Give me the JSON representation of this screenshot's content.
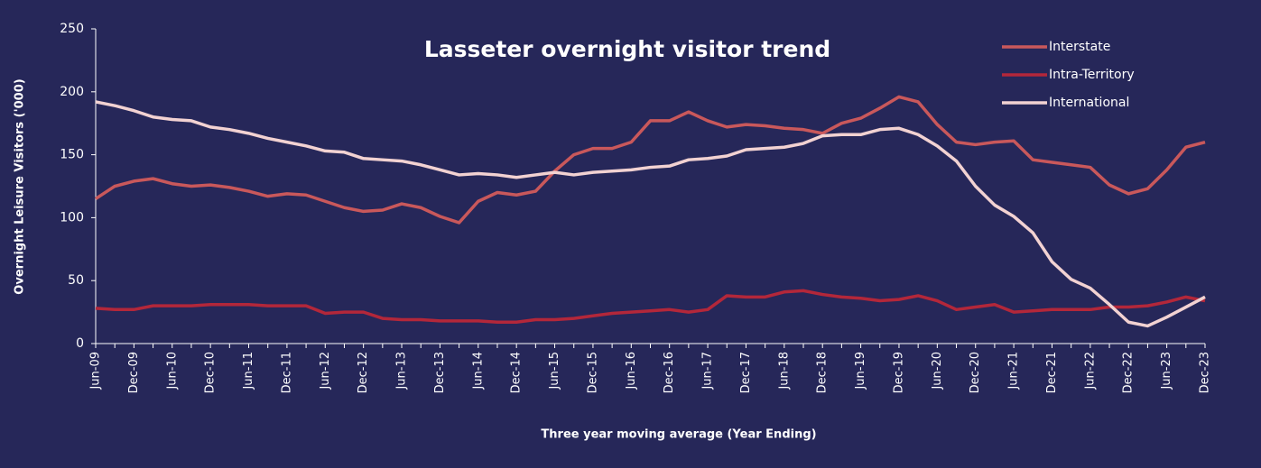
{
  "chart_data": {
    "type": "line",
    "title": "Lasseter overnight visitor trend",
    "y_label": "Overnight Leisure Visitors ('000)",
    "x_label": "Three year moving average (Year Ending)",
    "categories": [
      "Jun-09",
      null,
      "Dec-09",
      null,
      "Jun-10",
      null,
      "Dec-10",
      null,
      "Jun-11",
      null,
      "Dec-11",
      null,
      "Jun-12",
      null,
      "Dec-12",
      null,
      "Jun-13",
      null,
      "Dec-13",
      null,
      "Jun-14",
      null,
      "Dec-14",
      null,
      "Jun-15",
      null,
      "Dec-15",
      null,
      "Jun-16",
      null,
      "Dec-16",
      null,
      "Jun-17",
      null,
      "Dec-17",
      null,
      "Jun-18",
      null,
      "Dec-18",
      null,
      "Jun-19",
      null,
      "Dec-19",
      null,
      "Jun-20",
      null,
      "Dec-20",
      null,
      "Jun-21",
      null,
      "Dec-21",
      null,
      "Jun-22",
      null,
      "Dec-22",
      null,
      "Jun-23",
      null,
      "Dec-23"
    ],
    "series": [
      {
        "name": "Interstate",
        "color": "#c9585b",
        "values": [
          115,
          125,
          129,
          131,
          127,
          125,
          126,
          124,
          121,
          117,
          119,
          118,
          113,
          108,
          105,
          106,
          111,
          108,
          101,
          96,
          113,
          120,
          118,
          121,
          137,
          150,
          155,
          155,
          160,
          177,
          177,
          184,
          177,
          172,
          174,
          173,
          171,
          170,
          167,
          175,
          179,
          187,
          196,
          192,
          174,
          160,
          158,
          160,
          161,
          146,
          144,
          142,
          140,
          126,
          119,
          123,
          138,
          156,
          160
        ]
      },
      {
        "name": "Intra-Territory",
        "color": "#b3273a",
        "values": [
          28,
          27,
          27,
          30,
          30,
          30,
          31,
          31,
          31,
          30,
          30,
          30,
          24,
          25,
          25,
          20,
          19,
          19,
          18,
          18,
          18,
          17,
          17,
          19,
          19,
          20,
          22,
          24,
          25,
          26,
          27,
          25,
          27,
          38,
          37,
          37,
          41,
          42,
          39,
          37,
          36,
          34,
          35,
          38,
          34,
          27,
          29,
          31,
          25,
          26,
          27,
          27,
          27,
          29,
          29,
          30,
          33,
          37,
          34
        ]
      },
      {
        "name": "International",
        "color": "#f2d2d2",
        "values": [
          192,
          189,
          185,
          180,
          178,
          177,
          172,
          170,
          167,
          163,
          160,
          157,
          153,
          152,
          147,
          146,
          145,
          142,
          138,
          134,
          135,
          134,
          132,
          134,
          136,
          134,
          136,
          137,
          138,
          140,
          141,
          146,
          147,
          149,
          154,
          155,
          156,
          159,
          165,
          166,
          166,
          170,
          171,
          166,
          157,
          145,
          125,
          110,
          101,
          88,
          65,
          51,
          44,
          31,
          17,
          14,
          21,
          29,
          37
        ]
      }
    ],
    "ylim": [
      0,
      250
    ],
    "yticks": [
      0,
      50,
      100,
      150,
      200,
      250
    ],
    "grid": false,
    "legend": "top-right"
  }
}
